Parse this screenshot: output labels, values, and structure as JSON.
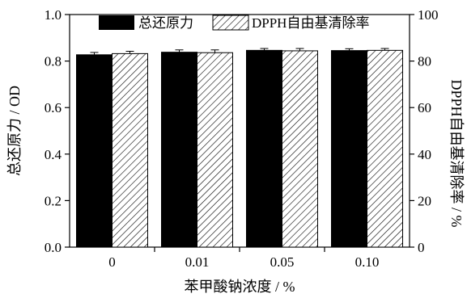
{
  "chart_data": {
    "type": "bar",
    "categories": [
      "0",
      "0.01",
      "0.05",
      "0.10"
    ],
    "xlabel": "苯甲酸钠浓度 / %",
    "ylabel_left": "总还原力 / OD",
    "ylabel_right": "DPPH自由基清除率 / %",
    "ylim_left": [
      0,
      1.0
    ],
    "ylim_right": [
      0,
      100
    ],
    "yticks_left": [
      "0.0",
      "0.2",
      "0.4",
      "0.6",
      "0.8",
      "1.0"
    ],
    "yticks_right": [
      "0",
      "20",
      "40",
      "60",
      "80",
      "100"
    ],
    "legend_position": "top",
    "grid": false,
    "series": [
      {
        "name": "总还原力",
        "axis": "left",
        "values": [
          0.827,
          0.838,
          0.846,
          0.845
        ],
        "errors": [
          0.01,
          0.01,
          0.008,
          0.008
        ],
        "color": "#000000",
        "pattern": "solid"
      },
      {
        "name": "DPPH自由基清除率",
        "axis": "right",
        "values": [
          83.2,
          83.6,
          84.4,
          84.6
        ],
        "errors": [
          1.0,
          1.2,
          1.0,
          0.8
        ],
        "color": "#ffffff",
        "pattern": "hatched"
      }
    ]
  }
}
